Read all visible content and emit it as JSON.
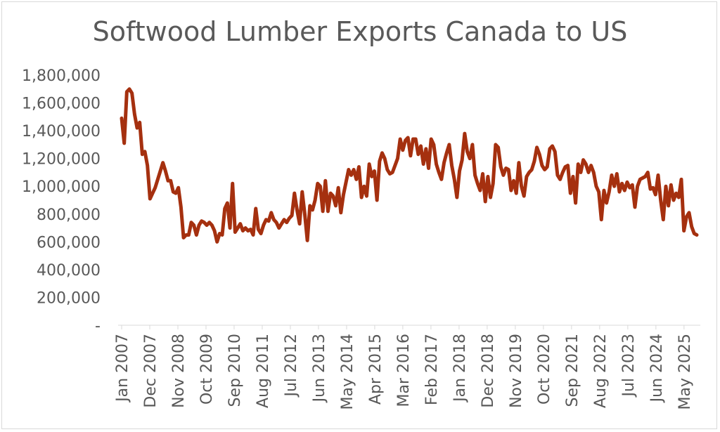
{
  "chart_data": {
    "type": "line",
    "title": "Softwood Lumber Exports Canada to US",
    "xlabel": "",
    "ylabel": "",
    "ylim": [
      0,
      1800000
    ],
    "y_ticks": [
      {
        "value": 0,
        "label": "-"
      },
      {
        "value": 200000,
        "label": "200,000"
      },
      {
        "value": 400000,
        "label": "400,000"
      },
      {
        "value": 600000,
        "label": "600,000"
      },
      {
        "value": 800000,
        "label": "800,000"
      },
      {
        "value": 1000000,
        "label": "1,000,000"
      },
      {
        "value": 1200000,
        "label": "1,200,000"
      },
      {
        "value": 1400000,
        "label": "1,400,000"
      },
      {
        "value": 1600000,
        "label": "1,600,000"
      },
      {
        "value": 1800000,
        "label": "1,800,000"
      }
    ],
    "x_ticks": [
      "Jan 2007",
      "Dec 2007",
      "Nov 2008",
      "Oct 2009",
      "Sep 2010",
      "Aug 2011",
      "Jul 2012",
      "Jun 2013",
      "May 2014",
      "Apr 2015",
      "Mar 2016",
      "Feb 2017",
      "Jan 2018",
      "Dec 2018",
      "Nov 2019",
      "Oct 2020",
      "Sep 2021",
      "Aug 2022",
      "Jul 2023",
      "Jun 2024",
      "May 2025"
    ],
    "x_start": "Jan 2007",
    "x_end": "Oct 2025",
    "grid": false,
    "legend": "none",
    "line_color": "#a5300f",
    "series": [
      {
        "values": [
          1490000,
          1310000,
          1680000,
          1700000,
          1670000,
          1520000,
          1420000,
          1460000,
          1230000,
          1250000,
          1150000,
          910000,
          950000,
          990000,
          1050000,
          1110000,
          1170000,
          1110000,
          1040000,
          1040000,
          960000,
          950000,
          990000,
          850000,
          630000,
          650000,
          650000,
          740000,
          720000,
          650000,
          720000,
          750000,
          740000,
          720000,
          740000,
          720000,
          680000,
          600000,
          660000,
          650000,
          840000,
          880000,
          700000,
          1020000,
          670000,
          700000,
          730000,
          680000,
          700000,
          680000,
          690000,
          650000,
          840000,
          690000,
          660000,
          720000,
          760000,
          750000,
          810000,
          760000,
          740000,
          700000,
          730000,
          760000,
          740000,
          770000,
          790000,
          950000,
          830000,
          730000,
          960000,
          800000,
          610000,
          860000,
          830000,
          900000,
          1020000,
          1000000,
          820000,
          1040000,
          820000,
          950000,
          930000,
          860000,
          990000,
          810000,
          940000,
          1030000,
          1120000,
          1080000,
          1120000,
          1050000,
          1140000,
          920000,
          1000000,
          930000,
          1160000,
          1070000,
          1110000,
          900000,
          1180000,
          1240000,
          1200000,
          1120000,
          1090000,
          1100000,
          1150000,
          1200000,
          1340000,
          1260000,
          1330000,
          1350000,
          1220000,
          1340000,
          1340000,
          1230000,
          1290000,
          1160000,
          1270000,
          1130000,
          1340000,
          1300000,
          1160000,
          1100000,
          1050000,
          1170000,
          1240000,
          1300000,
          1150000,
          1050000,
          920000,
          1110000,
          1190000,
          1380000,
          1250000,
          1200000,
          1300000,
          1080000,
          1020000,
          970000,
          1090000,
          890000,
          1070000,
          920000,
          1020000,
          1300000,
          1280000,
          1140000,
          1080000,
          1130000,
          1120000,
          970000,
          1040000,
          950000,
          1170000,
          1000000,
          930000,
          1070000,
          1100000,
          1120000,
          1180000,
          1280000,
          1230000,
          1150000,
          1120000,
          1140000,
          1270000,
          1290000,
          1250000,
          1080000,
          1050000,
          1100000,
          1140000,
          1150000,
          950000,
          1070000,
          880000,
          1160000,
          1100000,
          1190000,
          1160000,
          1100000,
          1150000,
          1100000,
          1000000,
          960000,
          760000,
          970000,
          880000,
          960000,
          1080000,
          1000000,
          1090000,
          960000,
          1020000,
          970000,
          1030000,
          990000,
          1010000,
          850000,
          1000000,
          1050000,
          1060000,
          1070000,
          1100000,
          980000,
          990000,
          940000,
          1080000,
          900000,
          760000,
          1000000,
          860000,
          1010000,
          900000,
          950000,
          920000,
          1050000,
          680000,
          780000,
          810000,
          710000,
          660000,
          650000
        ]
      }
    ]
  }
}
